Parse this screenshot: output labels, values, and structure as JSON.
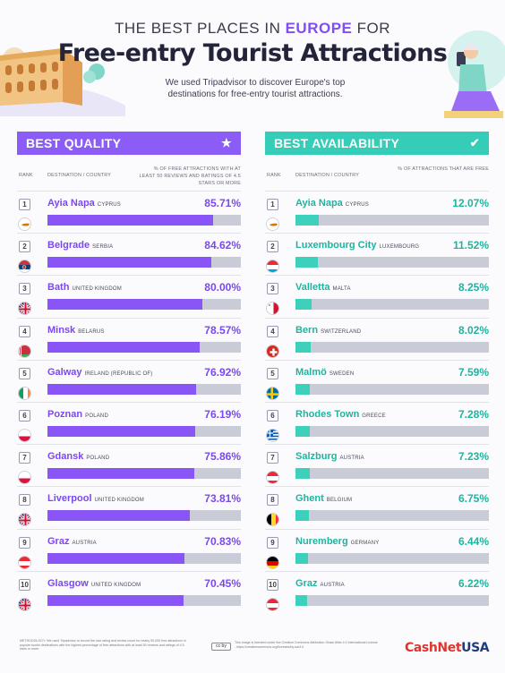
{
  "header": {
    "line1_prefix": "THE BEST PLACES IN ",
    "line1_emph": "EUROPE",
    "line1_suffix": " FOR",
    "title": "Free-entry Tourist Attractions",
    "subtitle": "We used Tripadvisor to discover Europe's top destinations for free-entry tourist attractions."
  },
  "colors": {
    "quality_accent": "#8c5cf6",
    "availability_accent": "#35cdb8",
    "track": "#c9ccd6"
  },
  "chart_data": [
    {
      "type": "bar",
      "title": "BEST QUALITY",
      "icon": "star-icon",
      "rank_label": "RANK",
      "dest_label": "DESTINATION / COUNTRY",
      "metric_label": "% OF FREE ATTRACTIONS WITH AT LEAST 50 REVIEWS AND RATINGS OF 4.5 STARS OR MORE",
      "ylim": [
        0,
        100
      ],
      "rows": [
        {
          "rank": "1",
          "city": "Ayia Napa",
          "country": "CYPRUS",
          "value": 85.71,
          "label": "85.71%",
          "flag": "cyprus"
        },
        {
          "rank": "2",
          "city": "Belgrade",
          "country": "SERBIA",
          "value": 84.62,
          "label": "84.62%",
          "flag": "serbia"
        },
        {
          "rank": "3",
          "city": "Bath",
          "country": "UNITED KINGDOM",
          "value": 80.0,
          "label": "80.00%",
          "flag": "uk"
        },
        {
          "rank": "4",
          "city": "Minsk",
          "country": "BELARUS",
          "value": 78.57,
          "label": "78.57%",
          "flag": "belarus"
        },
        {
          "rank": "5",
          "city": "Galway",
          "country": "IRELAND (REPUBLIC OF)",
          "value": 76.92,
          "label": "76.92%",
          "flag": "ireland"
        },
        {
          "rank": "6",
          "city": "Poznan",
          "country": "POLAND",
          "value": 76.19,
          "label": "76.19%",
          "flag": "poland"
        },
        {
          "rank": "7",
          "city": "Gdansk",
          "country": "POLAND",
          "value": 75.86,
          "label": "75.86%",
          "flag": "poland"
        },
        {
          "rank": "8",
          "city": "Liverpool",
          "country": "UNITED KINGDOM",
          "value": 73.81,
          "label": "73.81%",
          "flag": "uk"
        },
        {
          "rank": "9",
          "city": "Graz",
          "country": "AUSTRIA",
          "value": 70.83,
          "label": "70.83%",
          "flag": "austria"
        },
        {
          "rank": "10",
          "city": "Glasgow",
          "country": "UNITED KINGDOM",
          "value": 70.45,
          "label": "70.45%",
          "flag": "uk"
        }
      ]
    },
    {
      "type": "bar",
      "title": "BEST AVAILABILITY",
      "icon": "check-icon",
      "rank_label": "RANK",
      "dest_label": "DESTINATION / COUNTRY",
      "metric_label": "% OF ATTRACTIONS THAT ARE FREE",
      "ylim": [
        0,
        100
      ],
      "rows": [
        {
          "rank": "1",
          "city": "Ayia Napa",
          "country": "CYPRUS",
          "value": 12.07,
          "label": "12.07%",
          "flag": "cyprus"
        },
        {
          "rank": "2",
          "city": "Luxembourg City",
          "country": "LUXEMBOURG",
          "value": 11.52,
          "label": "11.52%",
          "flag": "luxembourg"
        },
        {
          "rank": "3",
          "city": "Valletta",
          "country": "MALTA",
          "value": 8.25,
          "label": "8.25%",
          "flag": "malta"
        },
        {
          "rank": "4",
          "city": "Bern",
          "country": "SWITZERLAND",
          "value": 8.02,
          "label": "8.02%",
          "flag": "switzerland"
        },
        {
          "rank": "5",
          "city": "Malmö",
          "country": "SWEDEN",
          "value": 7.59,
          "label": "7.59%",
          "flag": "sweden"
        },
        {
          "rank": "6",
          "city": "Rhodes Town",
          "country": "GREECE",
          "value": 7.28,
          "label": "7.28%",
          "flag": "greece"
        },
        {
          "rank": "7",
          "city": "Salzburg",
          "country": "AUSTRIA",
          "value": 7.23,
          "label": "7.23%",
          "flag": "austria"
        },
        {
          "rank": "8",
          "city": "Ghent",
          "country": "BELGIUM",
          "value": 6.75,
          "label": "6.75%",
          "flag": "belgium"
        },
        {
          "rank": "9",
          "city": "Nuremberg",
          "country": "GERMANY",
          "value": 6.44,
          "label": "6.44%",
          "flag": "germany"
        },
        {
          "rank": "10",
          "city": "Graz",
          "country": "AUSTRIA",
          "value": 6.22,
          "label": "6.22%",
          "flag": "austria"
        }
      ]
    }
  ],
  "footer": {
    "methodology": "METHODOLOGY: We used Tripadvisor to record the star rating and review count for nearly 50,000 free attractions in popular tourist destinations with the highest percentage of free attractions with at least 50 reviews and ratings of 4.5 stars or more.",
    "cc_badge": "cc by",
    "license": "This image is licensed under the Creative Commons Attribution-Share Alike 4.0 International License - https://creativecommons.org/licenses/by-sa/4.0",
    "brand_part1": "CashNet",
    "brand_part2": "USA"
  }
}
